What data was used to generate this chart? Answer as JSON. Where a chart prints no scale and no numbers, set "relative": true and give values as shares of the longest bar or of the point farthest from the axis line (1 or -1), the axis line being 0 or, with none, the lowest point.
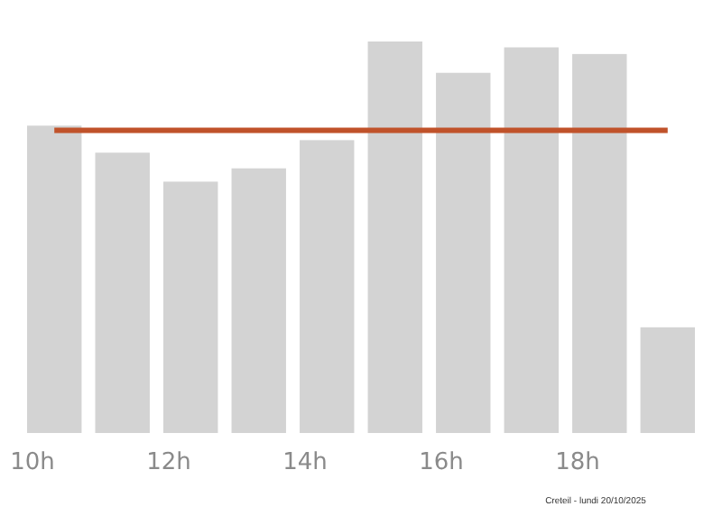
{
  "chart_data": {
    "type": "bar",
    "relative": true,
    "categories": [
      "10h",
      null,
      "12h",
      null,
      "14h",
      null,
      "16h",
      null,
      "18h",
      null
    ],
    "values": [
      0.785,
      0.716,
      0.642,
      0.676,
      0.748,
      1,
      0.92,
      0.985,
      0.968,
      0.27
    ],
    "color": "#d3d3d3",
    "ref_lines": [
      {
        "axis": "y",
        "value": 0.773,
        "color": "#c0522a"
      }
    ],
    "annotations": [
      "Creteil - lundi 20/10/2025"
    ]
  }
}
